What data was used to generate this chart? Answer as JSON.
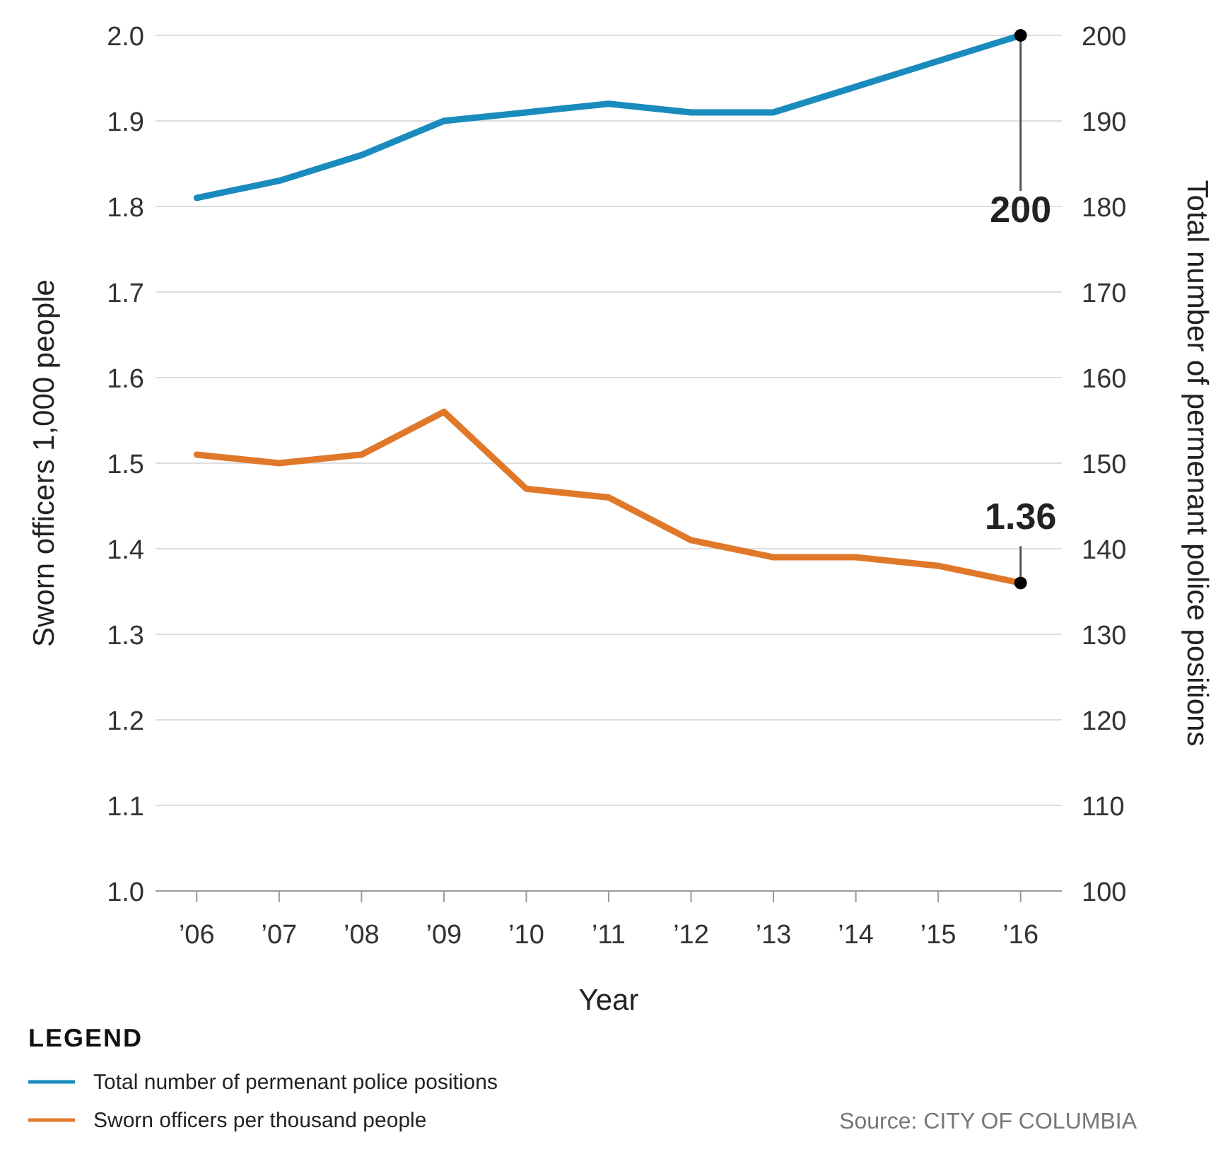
{
  "chart_data": {
    "type": "line",
    "xlabel": "Year",
    "ylabel": "Sworn officers 1,000 people",
    "y2label": "Total number of permenant police positions",
    "legend_title": "LEGEND",
    "legend": "bottom left",
    "grid": "y",
    "marker": "none",
    "line_style": "solid",
    "categories": [
      "’06",
      "’07",
      "’08",
      "’09",
      "’10",
      "’11",
      "’12",
      "’13",
      "’14",
      "’15",
      "’16"
    ],
    "ylim": [
      1.0,
      2.0
    ],
    "yticks": [
      {
        "value": 1.0,
        "label": "1.0"
      },
      1.1,
      1.2,
      1.3,
      1.4,
      1.5,
      1.6,
      1.7,
      1.8,
      1.9,
      {
        "value": 2.0,
        "label": "2.0"
      }
    ],
    "y2lim": [
      100,
      200
    ],
    "y2ticks": [
      100,
      110,
      120,
      130,
      140,
      150,
      160,
      170,
      180,
      190,
      200
    ],
    "series": [
      {
        "name": "Total number of permenant police positions",
        "color": "#1a8bbd",
        "axis": "y2",
        "values": [
          181,
          183,
          186,
          190,
          191,
          192,
          191,
          191,
          194,
          197,
          200
        ],
        "value_labels": [
          null,
          null,
          null,
          null,
          null,
          null,
          null,
          null,
          null,
          null,
          "200"
        ]
      },
      {
        "name": "Sworn officers per thousand people",
        "color": "#e0782a",
        "axis": "y",
        "values": [
          1.51,
          1.5,
          1.51,
          1.56,
          1.47,
          1.46,
          1.41,
          1.39,
          1.39,
          1.38,
          1.36
        ],
        "value_labels": [
          null,
          null,
          null,
          null,
          null,
          null,
          null,
          null,
          null,
          null,
          "1.36"
        ]
      }
    ],
    "annotations": [
      "Source: CITY OF COLUMBIA"
    ]
  }
}
